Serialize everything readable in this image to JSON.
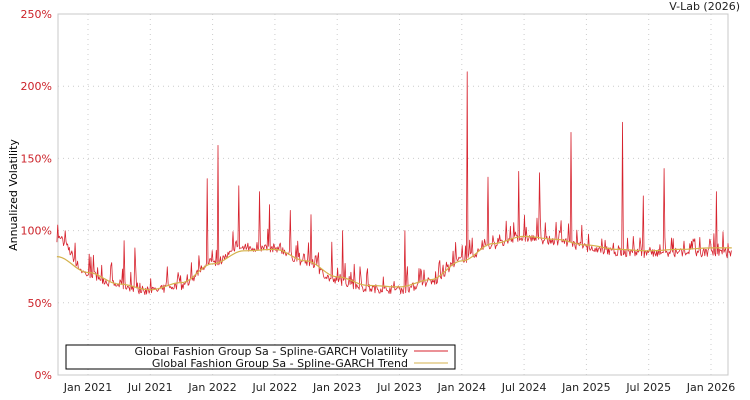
{
  "credit": "V-Lab (2026)",
  "colors": {
    "volatility": "#d7232e",
    "trend": "#d4b24c",
    "tick_y": "#cc2229",
    "grid": "#cccccc",
    "axis": "#c8c8c8"
  },
  "legend": {
    "items": [
      {
        "label": "Global Fashion Group Sa - Spline-GARCH Volatility",
        "color": "#d7232e"
      },
      {
        "label": "Global Fashion Group Sa - Spline-GARCH Trend",
        "color": "#d4b24c"
      }
    ]
  },
  "chart_data": {
    "type": "line",
    "title": "",
    "xlabel": "",
    "ylabel": "Annualized Volatility",
    "ylim": [
      0,
      250
    ],
    "y_ticks": [
      "0%",
      "50%",
      "100%",
      "150%",
      "200%",
      "250%"
    ],
    "y_tick_values": [
      0,
      50,
      100,
      150,
      200,
      250
    ],
    "x_ticks": [
      "Jan 2021",
      "Jul 2021",
      "Jan 2022",
      "Jul 2022",
      "Jan 2023",
      "Jul 2023",
      "Jan 2024",
      "Jul 2024",
      "Jan 2025",
      "Jul 2025",
      "Jan 2026"
    ],
    "x_range": [
      "Oct 2020",
      "Mar 2026"
    ],
    "grid": true,
    "legend_position": "lower left",
    "series": [
      {
        "name": "Global Fashion Group Sa - Spline-GARCH Trend",
        "x": [
          "Oct 2020",
          "Jan 2021",
          "Apr 2021",
          "Jul 2021",
          "Oct 2021",
          "Jan 2022",
          "Apr 2022",
          "Jul 2022",
          "Oct 2022",
          "Jan 2023",
          "Apr 2023",
          "Jul 2023",
          "Oct 2023",
          "Jan 2024",
          "Apr 2024",
          "Jul 2024",
          "Oct 2024",
          "Jan 2025",
          "Apr 2025",
          "Jul 2025",
          "Oct 2025",
          "Jan 2026",
          "Mar 2026"
        ],
        "values": [
          82,
          71,
          63,
          59,
          64,
          77,
          86,
          87,
          79,
          68,
          62,
          61,
          66,
          79,
          91,
          96,
          94,
          90,
          87,
          86,
          87,
          88,
          88
        ]
      },
      {
        "name": "Global Fashion Group Sa - Spline-GARCH Volatility",
        "x": [
          "Oct 2020",
          "Jan 2021",
          "Apr 2021",
          "Jul 2021",
          "Oct 2021",
          "Jan 2022",
          "Apr 2022",
          "Jul 2022",
          "Oct 2022",
          "Jan 2023",
          "Apr 2023",
          "Jul 2023",
          "Oct 2023",
          "Jan 2024",
          "Apr 2024",
          "Jul 2024",
          "Oct 2024",
          "Jan 2025",
          "Apr 2025",
          "Jul 2025",
          "Oct 2025",
          "Jan 2026",
          "Mar 2026"
        ],
        "values": [
          95,
          70,
          62,
          58,
          62,
          78,
          88,
          88,
          78,
          65,
          60,
          59,
          64,
          80,
          90,
          95,
          93,
          88,
          85,
          84,
          84,
          85,
          84
        ],
        "spikes": [
          {
            "x": "Oct 2020",
            "value": 96
          },
          {
            "x": "Apr 2021",
            "value": 93
          },
          {
            "x": "May 2021",
            "value": 88
          },
          {
            "x": "Dec 2021",
            "value": 136
          },
          {
            "x": "Jan 2022",
            "value": 159
          },
          {
            "x": "Mar 2022",
            "value": 131
          },
          {
            "x": "May 2022",
            "value": 127
          },
          {
            "x": "Jun 2022",
            "value": 118
          },
          {
            "x": "Aug 2022",
            "value": 114
          },
          {
            "x": "Oct 2022",
            "value": 111
          },
          {
            "x": "Dec 2022",
            "value": 92
          },
          {
            "x": "Jan 2023",
            "value": 100
          },
          {
            "x": "Jul 2023",
            "value": 100
          },
          {
            "x": "Jan 2024",
            "value": 210
          },
          {
            "x": "Mar 2024",
            "value": 137
          },
          {
            "x": "Jun 2024",
            "value": 141
          },
          {
            "x": "Aug 2024",
            "value": 140
          },
          {
            "x": "Nov 2024",
            "value": 168
          },
          {
            "x": "Apr 2025",
            "value": 175
          },
          {
            "x": "Jun 2025",
            "value": 124
          },
          {
            "x": "Aug 2025",
            "value": 143
          },
          {
            "x": "Jan 2026",
            "value": 127
          }
        ]
      }
    ]
  }
}
